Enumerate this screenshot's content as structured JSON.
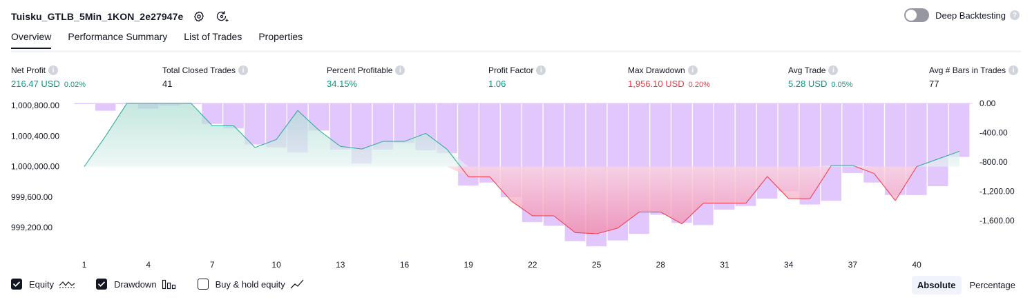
{
  "header": {
    "title": "Tuisku_GTLB_5Min_1KON_2e27947e",
    "settings_icon": "gear-icon",
    "refresh_icon": "refresh-icon"
  },
  "deep_backtesting": {
    "label": "Deep Backtesting",
    "enabled": false,
    "help": "?"
  },
  "tabs": [
    {
      "label": "Overview",
      "active": true
    },
    {
      "label": "Performance Summary",
      "active": false
    },
    {
      "label": "List of Trades",
      "active": false
    },
    {
      "label": "Properties",
      "active": false
    }
  ],
  "metrics": {
    "net_profit": {
      "label": "Net Profit",
      "value": "216.47 USD",
      "pct": "0.02%"
    },
    "total_closed_trades": {
      "label": "Total Closed Trades",
      "value": "41"
    },
    "percent_profitable": {
      "label": "Percent Profitable",
      "value": "34.15%"
    },
    "profit_factor": {
      "label": "Profit Factor",
      "value": "1.06"
    },
    "max_drawdown": {
      "label": "Max Drawdown",
      "value": "1,956.10 USD",
      "pct": "0.20%"
    },
    "avg_trade": {
      "label": "Avg Trade",
      "value": "5.28 USD",
      "pct": "0.05%"
    },
    "avg_bars": {
      "label": "Avg # Bars in Trades",
      "value": "77"
    }
  },
  "chart_data": {
    "type": "line",
    "x": [
      1,
      2,
      3,
      4,
      5,
      6,
      7,
      8,
      9,
      10,
      11,
      12,
      13,
      14,
      15,
      16,
      17,
      18,
      19,
      20,
      21,
      22,
      23,
      24,
      25,
      26,
      27,
      28,
      29,
      30,
      31,
      32,
      33,
      34,
      35,
      36,
      37,
      38,
      39,
      40,
      41,
      42
    ],
    "series": [
      {
        "name": "Equity",
        "values": [
          1000000,
          1000400,
          1000830,
          1000830,
          1000830,
          1000830,
          1000535,
          1000535,
          1000250,
          1000355,
          1000735,
          1000475,
          1000265,
          1000230,
          1000330,
          1000330,
          1000435,
          1000225,
          999865,
          999865,
          999550,
          999355,
          999355,
          999135,
          999120,
          999195,
          999405,
          999405,
          999250,
          999520,
          999520,
          999520,
          999870,
          999580,
          999580,
          1000015,
          1000015,
          999910,
          999555,
          1000000,
          1000100,
          1000200
        ]
      },
      {
        "name": "Drawdown",
        "values": [
          -5,
          -100,
          0,
          -70,
          -30,
          -10,
          -280,
          -340,
          -560,
          -600,
          -670,
          -370,
          -630,
          -820,
          -630,
          -540,
          -640,
          -680,
          -1120,
          -1080,
          -1280,
          -1620,
          -1670,
          -1880,
          -1950,
          -1870,
          -1780,
          -1520,
          -1630,
          -1660,
          -1450,
          -1400,
          -1300,
          -1200,
          -1380,
          -1330,
          -950,
          -1080,
          -1250,
          -1250,
          -1130,
          -730
        ]
      }
    ],
    "y_left": {
      "ticks": [
        "1,000,800.00",
        "1,000,400.00",
        "1,000,000.00",
        "999,600.00",
        "999,200.00"
      ],
      "min": 999100,
      "max": 1000800
    },
    "y_right": {
      "ticks": [
        "0.00",
        "-400.00",
        "-800.00",
        "-1,200.00",
        "-1,600.00"
      ],
      "min": -1950,
      "max": 0
    },
    "x_ticks": [
      "1",
      "4",
      "7",
      "10",
      "13",
      "16",
      "19",
      "22",
      "25",
      "28",
      "31",
      "34",
      "37",
      "40"
    ],
    "colors": {
      "equity_up": "#26a69a",
      "equity_down": "#f23645",
      "drawdown": "#e0c4fc",
      "fill_up": "#d4ece7",
      "fill_down": "#f6a4bd"
    }
  },
  "legend": {
    "equity": {
      "label": "Equity",
      "checked": true
    },
    "drawdown": {
      "label": "Drawdown",
      "checked": true
    },
    "buy_hold": {
      "label": "Buy & hold equity",
      "checked": false
    }
  },
  "mode": {
    "absolute": "Absolute",
    "percentage": "Percentage"
  }
}
